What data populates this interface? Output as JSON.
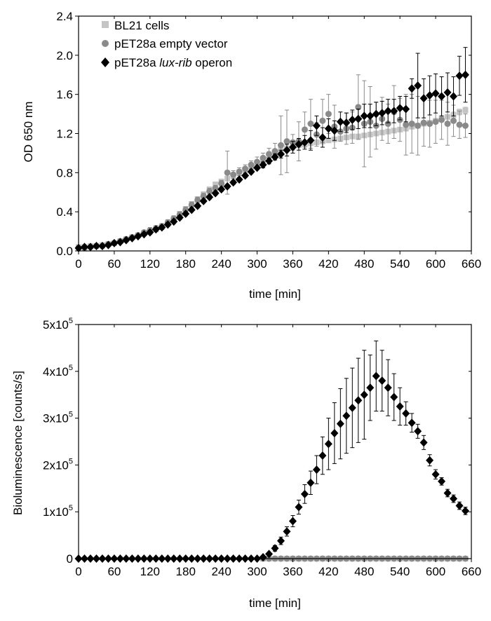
{
  "figure_colors": {
    "bl21": "#c4c4c4",
    "empty": "#8a8a8a",
    "lux": "#000000"
  },
  "chart_data": [
    {
      "type": "scatter",
      "title": "",
      "xlabel": "time [min]",
      "ylabel": "OD 650 nm",
      "xlim": [
        0,
        660
      ],
      "ylim": [
        0.0,
        2.4
      ],
      "xticks": [
        0,
        60,
        120,
        180,
        240,
        300,
        360,
        420,
        480,
        540,
        600,
        660
      ],
      "xtick_labels": [
        "0",
        "60",
        "120",
        "180",
        "240",
        "300",
        "360",
        "420",
        "480",
        "540",
        "600",
        "660"
      ],
      "yticks": [
        0.0,
        0.4,
        0.8,
        1.2,
        1.6,
        2.0,
        2.4
      ],
      "ytick_labels": [
        "0.0",
        "0.4",
        "0.8",
        "1.2",
        "1.6",
        "2.0",
        "2.4"
      ],
      "legend": {
        "position": "top-left",
        "entries": [
          {
            "label": "BL21 cells",
            "marker": "square"
          },
          {
            "label": "pET28a empty vector",
            "marker": "circle"
          },
          {
            "label_parts": [
              "pET28a ",
              "lux-rib",
              " operon"
            ],
            "marker": "diamond"
          }
        ]
      },
      "series": [
        {
          "name": "BL21 cells",
          "marker": "square",
          "color": "#c4c4c4",
          "x": [
            0,
            10,
            20,
            30,
            40,
            50,
            60,
            70,
            80,
            90,
            100,
            110,
            120,
            130,
            140,
            150,
            160,
            170,
            180,
            190,
            200,
            210,
            220,
            230,
            240,
            250,
            260,
            270,
            280,
            290,
            300,
            310,
            320,
            330,
            340,
            350,
            360,
            370,
            380,
            390,
            400,
            410,
            420,
            430,
            440,
            450,
            460,
            470,
            480,
            490,
            500,
            510,
            520,
            530,
            540,
            550,
            560,
            570,
            580,
            590,
            600,
            610,
            620,
            630,
            640,
            650
          ],
          "y": [
            0.04,
            0.04,
            0.05,
            0.05,
            0.06,
            0.07,
            0.08,
            0.1,
            0.12,
            0.14,
            0.16,
            0.18,
            0.2,
            0.22,
            0.25,
            0.29,
            0.33,
            0.38,
            0.43,
            0.48,
            0.53,
            0.58,
            0.63,
            0.68,
            0.71,
            0.74,
            0.77,
            0.8,
            0.83,
            0.86,
            0.89,
            0.93,
            0.97,
            1.0,
            1.03,
            1.05,
            1.07,
            1.08,
            1.09,
            1.1,
            1.11,
            1.12,
            1.13,
            1.14,
            1.15,
            1.16,
            1.17,
            1.17,
            1.18,
            1.19,
            1.2,
            1.21,
            1.22,
            1.23,
            1.24,
            1.25,
            1.27,
            1.28,
            1.3,
            1.31,
            1.33,
            1.35,
            1.37,
            1.39,
            1.42,
            1.44
          ],
          "err": [
            0.01,
            0.01,
            0.01,
            0.01,
            0.01,
            0.01,
            0.01,
            0.01,
            0.01,
            0.01,
            0.01,
            0.01,
            0.02,
            0.02,
            0.02,
            0.02,
            0.02,
            0.02,
            0.02,
            0.02,
            0.02,
            0.02,
            0.02,
            0.02,
            0.02,
            0.02,
            0.02,
            0.02,
            0.02,
            0.02,
            0.02,
            0.02,
            0.02,
            0.02,
            0.02,
            0.02,
            0.02,
            0.02,
            0.02,
            0.02,
            0.02,
            0.02,
            0.02,
            0.02,
            0.02,
            0.02,
            0.02,
            0.02,
            0.02,
            0.02,
            0.02,
            0.02,
            0.02,
            0.02,
            0.02,
            0.02,
            0.02,
            0.02,
            0.02,
            0.02,
            0.02,
            0.02,
            0.02,
            0.03,
            0.03,
            0.03
          ]
        },
        {
          "name": "pET28a empty vector",
          "marker": "circle",
          "color": "#8a8a8a",
          "x": [
            0,
            10,
            20,
            30,
            40,
            50,
            60,
            70,
            80,
            90,
            100,
            110,
            120,
            130,
            140,
            150,
            160,
            170,
            180,
            190,
            200,
            210,
            220,
            230,
            240,
            250,
            260,
            270,
            280,
            290,
            300,
            310,
            320,
            330,
            340,
            350,
            360,
            370,
            380,
            390,
            400,
            410,
            420,
            430,
            440,
            450,
            460,
            470,
            480,
            490,
            500,
            510,
            520,
            530,
            540,
            550,
            560,
            570,
            580,
            590,
            600,
            610,
            620,
            630,
            640,
            650
          ],
          "y": [
            0.03,
            0.03,
            0.04,
            0.05,
            0.05,
            0.07,
            0.08,
            0.1,
            0.12,
            0.14,
            0.16,
            0.19,
            0.21,
            0.23,
            0.25,
            0.29,
            0.33,
            0.37,
            0.42,
            0.47,
            0.52,
            0.56,
            0.61,
            0.64,
            0.69,
            0.8,
            0.78,
            0.81,
            0.84,
            0.88,
            0.91,
            0.95,
            0.99,
            1.02,
            1.08,
            1.12,
            1.11,
            1.12,
            1.24,
            1.3,
            1.19,
            1.33,
            1.4,
            1.27,
            1.22,
            1.25,
            1.26,
            1.47,
            1.3,
            1.32,
            1.28,
            1.35,
            1.3,
            1.42,
            1.34,
            1.29,
            1.3,
            1.28,
            1.31,
            1.3,
            1.32,
            1.34,
            1.3,
            1.33,
            1.29,
            1.28
          ],
          "err": [
            0.02,
            0.02,
            0.02,
            0.02,
            0.02,
            0.02,
            0.02,
            0.02,
            0.02,
            0.02,
            0.02,
            0.02,
            0.03,
            0.03,
            0.03,
            0.03,
            0.03,
            0.03,
            0.03,
            0.03,
            0.03,
            0.03,
            0.03,
            0.03,
            0.03,
            0.22,
            0.04,
            0.04,
            0.04,
            0.04,
            0.05,
            0.05,
            0.06,
            0.08,
            0.3,
            0.32,
            0.08,
            0.2,
            0.18,
            0.25,
            0.12,
            0.22,
            0.2,
            0.22,
            0.1,
            0.16,
            0.16,
            0.33,
            0.44,
            0.36,
            0.24,
            0.22,
            0.2,
            0.27,
            0.22,
            0.31,
            0.3,
            0.3,
            0.24,
            0.24,
            0.22,
            0.2,
            0.22,
            0.16,
            0.14,
            0.12
          ]
        },
        {
          "name": "pET28a lux-rib operon",
          "marker": "diamond",
          "color": "#000000",
          "x": [
            0,
            10,
            20,
            30,
            40,
            50,
            60,
            70,
            80,
            90,
            100,
            110,
            120,
            130,
            140,
            150,
            160,
            170,
            180,
            190,
            200,
            210,
            220,
            230,
            240,
            250,
            260,
            270,
            280,
            290,
            300,
            310,
            320,
            330,
            340,
            350,
            360,
            370,
            380,
            390,
            400,
            410,
            420,
            430,
            440,
            450,
            460,
            470,
            480,
            490,
            500,
            510,
            520,
            530,
            540,
            550,
            560,
            570,
            580,
            590,
            600,
            610,
            620,
            630,
            640,
            650
          ],
          "y": [
            0.03,
            0.04,
            0.04,
            0.05,
            0.05,
            0.06,
            0.08,
            0.09,
            0.11,
            0.13,
            0.15,
            0.17,
            0.19,
            0.22,
            0.24,
            0.27,
            0.3,
            0.34,
            0.38,
            0.42,
            0.46,
            0.51,
            0.55,
            0.59,
            0.63,
            0.66,
            0.7,
            0.73,
            0.77,
            0.81,
            0.85,
            0.88,
            0.92,
            0.96,
            0.99,
            1.03,
            1.06,
            1.09,
            1.11,
            1.13,
            1.28,
            1.16,
            1.25,
            1.23,
            1.32,
            1.31,
            1.34,
            1.35,
            1.38,
            1.38,
            1.4,
            1.41,
            1.43,
            1.43,
            1.46,
            1.45,
            1.66,
            1.69,
            1.56,
            1.59,
            1.61,
            1.58,
            1.62,
            1.58,
            1.79,
            1.8
          ],
          "err": [
            0.01,
            0.01,
            0.01,
            0.01,
            0.01,
            0.01,
            0.01,
            0.01,
            0.01,
            0.01,
            0.01,
            0.01,
            0.02,
            0.02,
            0.02,
            0.02,
            0.02,
            0.02,
            0.02,
            0.02,
            0.02,
            0.02,
            0.02,
            0.02,
            0.02,
            0.02,
            0.02,
            0.02,
            0.02,
            0.02,
            0.02,
            0.03,
            0.03,
            0.03,
            0.04,
            0.06,
            0.06,
            0.06,
            0.07,
            0.1,
            0.1,
            0.1,
            0.1,
            0.1,
            0.1,
            0.1,
            0.1,
            0.1,
            0.12,
            0.12,
            0.12,
            0.12,
            0.12,
            0.12,
            0.12,
            0.13,
            0.1,
            0.33,
            0.2,
            0.2,
            0.2,
            0.2,
            0.2,
            0.2,
            0.2,
            0.28
          ]
        }
      ]
    },
    {
      "type": "scatter",
      "title": "",
      "xlabel": "time [min]",
      "ylabel": "Bioluminescence [counts/s]",
      "xlim": [
        0,
        660
      ],
      "ylim": [
        0,
        500000
      ],
      "xticks": [
        0,
        60,
        120,
        180,
        240,
        300,
        360,
        420,
        480,
        540,
        600,
        660
      ],
      "xtick_labels": [
        "0",
        "60",
        "120",
        "180",
        "240",
        "300",
        "360",
        "420",
        "480",
        "540",
        "600",
        "660"
      ],
      "yticks": [
        0,
        100000,
        200000,
        300000,
        400000,
        500000
      ],
      "ytick_labels": [
        {
          "base": "0",
          "exp": ""
        },
        {
          "base": "1x10",
          "exp": "5"
        },
        {
          "base": "2x10",
          "exp": "5"
        },
        {
          "base": "3x10",
          "exp": "5"
        },
        {
          "base": "4x10",
          "exp": "5"
        },
        {
          "base": "5x10",
          "exp": "5"
        }
      ],
      "series": [
        {
          "name": "BL21 cells",
          "marker": "square",
          "color": "#c4c4c4",
          "x": [
            310,
            320,
            330,
            340,
            350,
            360,
            370,
            380,
            390,
            400,
            410,
            420,
            430,
            440,
            450,
            460,
            470,
            480,
            490,
            500,
            510,
            520,
            530,
            540,
            550,
            560,
            570,
            580,
            590,
            600,
            610,
            620,
            630,
            640,
            650
          ],
          "y": [
            0,
            0,
            0,
            0,
            0,
            0,
            0,
            0,
            0,
            0,
            0,
            0,
            0,
            0,
            0,
            0,
            0,
            0,
            0,
            0,
            0,
            0,
            0,
            0,
            0,
            0,
            0,
            0,
            0,
            0,
            0,
            0,
            0,
            0,
            0
          ],
          "err": []
        },
        {
          "name": "pET28a empty vector",
          "marker": "circle",
          "color": "#8a8a8a",
          "x": [
            310,
            320,
            330,
            340,
            350,
            360,
            370,
            380,
            390,
            400,
            410,
            420,
            430,
            440,
            450,
            460,
            470,
            480,
            490,
            500,
            510,
            520,
            530,
            540,
            550,
            560,
            570,
            580,
            590,
            600,
            610,
            620,
            630,
            640,
            650
          ],
          "y": [
            0,
            0,
            0,
            0,
            0,
            0,
            0,
            0,
            0,
            0,
            0,
            0,
            0,
            0,
            0,
            0,
            0,
            0,
            0,
            0,
            0,
            0,
            0,
            0,
            0,
            0,
            0,
            0,
            0,
            0,
            0,
            0,
            0,
            0,
            0
          ],
          "err": []
        },
        {
          "name": "pET28a lux-rib operon",
          "marker": "diamond",
          "color": "#000000",
          "x": [
            0,
            10,
            20,
            30,
            40,
            50,
            60,
            70,
            80,
            90,
            100,
            110,
            120,
            130,
            140,
            150,
            160,
            170,
            180,
            190,
            200,
            210,
            220,
            230,
            240,
            250,
            260,
            270,
            280,
            290,
            300,
            310,
            320,
            330,
            340,
            350,
            360,
            370,
            380,
            390,
            400,
            410,
            420,
            430,
            440,
            450,
            460,
            470,
            480,
            490,
            500,
            510,
            520,
            530,
            540,
            550,
            560,
            570,
            580,
            590,
            600,
            610,
            620,
            630,
            640,
            650
          ],
          "y": [
            0,
            0,
            0,
            0,
            0,
            0,
            0,
            0,
            0,
            0,
            0,
            0,
            0,
            0,
            0,
            0,
            0,
            0,
            0,
            0,
            0,
            0,
            0,
            0,
            0,
            0,
            0,
            0,
            0,
            0,
            0,
            3000,
            10000,
            22000,
            38000,
            58000,
            80000,
            110000,
            138000,
            162000,
            190000,
            220000,
            245000,
            268000,
            288000,
            305000,
            322000,
            338000,
            350000,
            365000,
            390000,
            380000,
            365000,
            345000,
            325000,
            310000,
            290000,
            272000,
            248000,
            210000,
            180000,
            165000,
            140000,
            128000,
            113000,
            102000
          ],
          "err": [
            0,
            0,
            0,
            0,
            0,
            0,
            0,
            0,
            0,
            0,
            0,
            0,
            0,
            0,
            0,
            0,
            0,
            0,
            0,
            0,
            0,
            0,
            0,
            0,
            0,
            0,
            0,
            0,
            0,
            0,
            0,
            1000,
            3000,
            6000,
            8000,
            10000,
            12000,
            15000,
            20000,
            25000,
            30000,
            40000,
            55000,
            65000,
            75000,
            80000,
            85000,
            90000,
            95000,
            70000,
            75000,
            65000,
            60000,
            50000,
            40000,
            25000,
            20000,
            15000,
            15000,
            12000,
            10000,
            8000,
            8000,
            8000,
            8000,
            8000
          ]
        }
      ]
    }
  ]
}
